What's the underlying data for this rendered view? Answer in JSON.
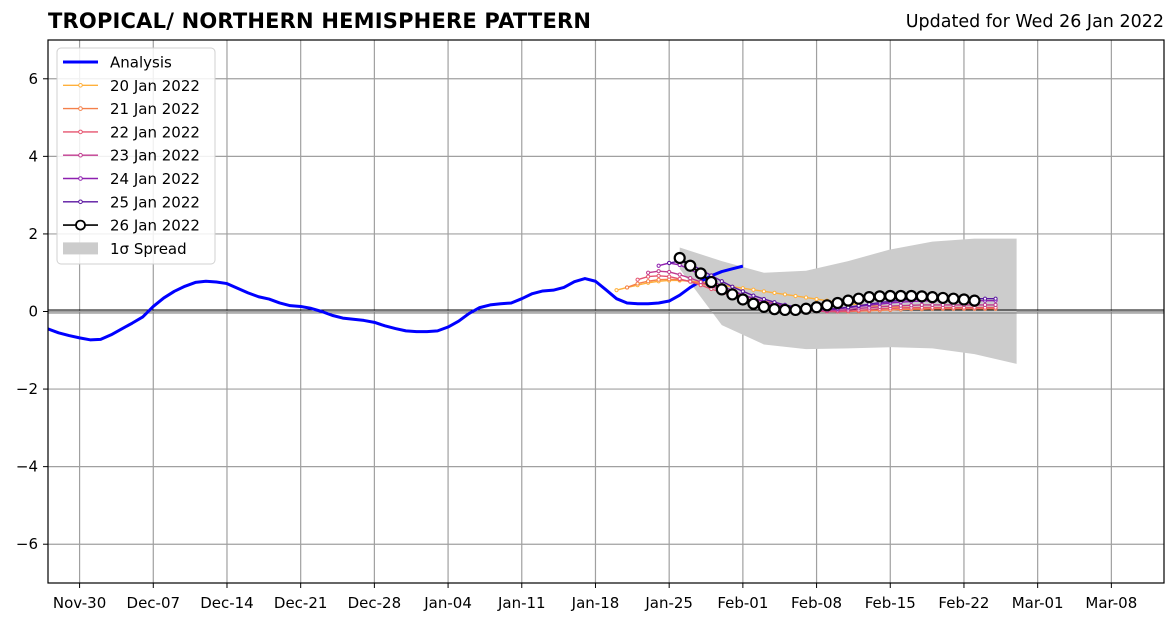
{
  "header": {
    "title": "TROPICAL/ NORTHERN HEMISPHERE PATTERN",
    "updated": "Updated for Wed 26 Jan 2022"
  },
  "chart_data": {
    "type": "line",
    "title": "TROPICAL/ NORTHERN HEMISPHERE PATTERN",
    "xlabel": "",
    "ylabel": "",
    "ylim": [
      -7,
      7
    ],
    "xlim": [
      "2021-11-27",
      "2022-03-13"
    ],
    "grid": true,
    "legend_position": "top-left",
    "y_ticks": [
      "6",
      "4",
      "2",
      "0",
      "−2",
      "−4",
      "−6"
    ],
    "x_ticks": [
      {
        "label": "Nov-30",
        "date": "2021-11-30"
      },
      {
        "label": "Dec-07",
        "date": "2021-12-07"
      },
      {
        "label": "Dec-14",
        "date": "2021-12-14"
      },
      {
        "label": "Dec-21",
        "date": "2021-12-21"
      },
      {
        "label": "Dec-28",
        "date": "2021-12-28"
      },
      {
        "label": "Jan-04",
        "date": "2022-01-04"
      },
      {
        "label": "Jan-11",
        "date": "2022-01-11"
      },
      {
        "label": "Jan-18",
        "date": "2022-01-18"
      },
      {
        "label": "Jan-25",
        "date": "2022-01-25"
      },
      {
        "label": "Feb-01",
        "date": "2022-02-01"
      },
      {
        "label": "Feb-08",
        "date": "2022-02-08"
      },
      {
        "label": "Feb-15",
        "date": "2022-02-15"
      },
      {
        "label": "Feb-22",
        "date": "2022-02-22"
      },
      {
        "label": "Mar-01",
        "date": "2022-03-01"
      },
      {
        "label": "Mar-08",
        "date": "2022-03-08"
      }
    ],
    "analysis": {
      "name": "Analysis",
      "color": "#0000ff",
      "start_date": "2021-11-27",
      "values": [
        -0.45,
        -0.55,
        -0.62,
        -0.68,
        -0.73,
        -0.72,
        -0.6,
        -0.45,
        -0.3,
        -0.14,
        0.13,
        0.35,
        0.52,
        0.65,
        0.75,
        0.78,
        0.76,
        0.72,
        0.6,
        0.48,
        0.38,
        0.32,
        0.22,
        0.15,
        0.13,
        0.08,
        0.0,
        -0.1,
        -0.17,
        -0.2,
        -0.23,
        -0.28,
        -0.37,
        -0.44,
        -0.5,
        -0.52,
        -0.52,
        -0.5,
        -0.4,
        -0.25,
        -0.05,
        0.1,
        0.17,
        0.2,
        0.22,
        0.33,
        0.46,
        0.53,
        0.55,
        0.62,
        0.77,
        0.85,
        0.78,
        0.56,
        0.33,
        0.22,
        0.2,
        0.2,
        0.22,
        0.27,
        0.42,
        0.62,
        0.78,
        0.92,
        1.03,
        1.1,
        1.17
      ]
    },
    "forecasts": [
      {
        "name": "20 Jan 2022",
        "color": "#ffb03b",
        "start_date": "2022-01-20",
        "values": [
          0.55,
          0.62,
          0.68,
          0.74,
          0.78,
          0.8,
          0.8,
          0.78,
          0.76,
          0.72,
          0.68,
          0.64,
          0.6,
          0.56,
          0.52,
          0.48,
          0.44,
          0.4,
          0.36,
          0.32,
          0.28,
          0.24,
          0.2,
          0.18,
          0.15,
          0.14,
          0.12,
          0.11,
          0.1,
          0.1,
          0.1,
          0.1,
          0.1,
          0.1,
          0.1,
          0.1,
          0.1
        ]
      },
      {
        "name": "21 Jan 2022",
        "color": "#f4804a",
        "start_date": "2022-01-21",
        "values": [
          0.62,
          0.72,
          0.78,
          0.82,
          0.83,
          0.82,
          0.78,
          0.72,
          0.65,
          0.57,
          0.49,
          0.41,
          0.34,
          0.27,
          0.21,
          0.15,
          0.1,
          0.06,
          0.03,
          0.01,
          0.0,
          0.0,
          0.01,
          0.02,
          0.03,
          0.04,
          0.05,
          0.06,
          0.06,
          0.07,
          0.07,
          0.07,
          0.07,
          0.07,
          0.07,
          0.07
        ]
      },
      {
        "name": "22 Jan 2022",
        "color": "#e5546f",
        "start_date": "2022-01-22",
        "values": [
          0.82,
          0.9,
          0.92,
          0.9,
          0.84,
          0.77,
          0.68,
          0.58,
          0.49,
          0.4,
          0.32,
          0.25,
          0.18,
          0.12,
          0.08,
          0.04,
          0.02,
          0.01,
          0.0,
          0.0,
          0.01,
          0.03,
          0.05,
          0.07,
          0.08,
          0.09,
          0.1,
          0.1,
          0.1,
          0.1,
          0.1,
          0.1,
          0.1,
          0.1,
          0.1
        ]
      },
      {
        "name": "23 Jan 2022",
        "color": "#c03a8f",
        "start_date": "2022-01-23",
        "values": [
          1.0,
          1.04,
          1.02,
          0.95,
          0.86,
          0.76,
          0.65,
          0.55,
          0.45,
          0.36,
          0.28,
          0.21,
          0.15,
          0.1,
          0.06,
          0.03,
          0.02,
          0.02,
          0.03,
          0.05,
          0.08,
          0.1,
          0.12,
          0.14,
          0.15,
          0.16,
          0.17,
          0.17,
          0.17,
          0.17,
          0.17,
          0.17,
          0.17,
          0.17
        ]
      },
      {
        "name": "24 Jan 2022",
        "color": "#8e20b0",
        "start_date": "2022-01-24",
        "values": [
          1.18,
          1.25,
          1.2,
          1.08,
          0.94,
          0.8,
          0.66,
          0.54,
          0.43,
          0.34,
          0.26,
          0.19,
          0.13,
          0.09,
          0.06,
          0.05,
          0.05,
          0.07,
          0.1,
          0.13,
          0.16,
          0.19,
          0.22,
          0.24,
          0.26,
          0.27,
          0.28,
          0.28,
          0.28,
          0.28,
          0.28,
          0.28,
          0.28
        ]
      },
      {
        "name": "25 Jan 2022",
        "color": "#5a14a0",
        "start_date": "2022-01-25",
        "values": [
          1.25,
          1.3,
          1.22,
          1.08,
          0.93,
          0.78,
          0.64,
          0.52,
          0.41,
          0.32,
          0.24,
          0.17,
          0.12,
          0.08,
          0.06,
          0.06,
          0.08,
          0.11,
          0.15,
          0.19,
          0.23,
          0.26,
          0.29,
          0.31,
          0.32,
          0.33,
          0.33,
          0.33,
          0.33,
          0.33,
          0.33,
          0.33
        ]
      },
      {
        "name": "26 Jan 2022",
        "color": "#000000",
        "start_date": "2022-01-26",
        "values": [
          1.38,
          1.18,
          0.98,
          0.76,
          0.57,
          0.44,
          0.31,
          0.2,
          0.12,
          0.06,
          0.04,
          0.04,
          0.07,
          0.11,
          0.16,
          0.22,
          0.28,
          0.33,
          0.37,
          0.39,
          0.4,
          0.4,
          0.4,
          0.39,
          0.37,
          0.35,
          0.33,
          0.31,
          0.28
        ]
      }
    ],
    "spread": {
      "name": "1σ Spread",
      "color": "#cccccc",
      "dates": [
        "2022-01-26",
        "2022-01-30",
        "2022-02-03",
        "2022-02-07",
        "2022-02-11",
        "2022-02-15",
        "2022-02-19",
        "2022-02-23",
        "2022-02-27"
      ],
      "upper": [
        1.65,
        1.3,
        1.0,
        1.05,
        1.3,
        1.6,
        1.8,
        1.88,
        1.88
      ],
      "lower": [
        1.1,
        -0.35,
        -0.85,
        -0.97,
        -0.95,
        -0.92,
        -0.95,
        -1.1,
        -1.35
      ]
    }
  }
}
